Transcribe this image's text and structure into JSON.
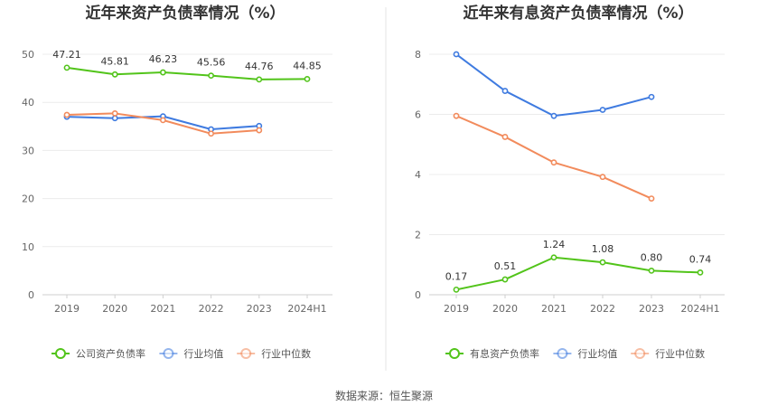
{
  "footer": {
    "source": "数据来源：恒生聚源"
  },
  "chart_data": [
    {
      "type": "line",
      "title": "近年来资产负债率情况（%）",
      "categories": [
        "2019",
        "2020",
        "2021",
        "2022",
        "2023",
        "2024H1"
      ],
      "ylim": [
        0,
        50
      ],
      "yticks": [
        0,
        10,
        20,
        30,
        40,
        50
      ],
      "grid": true,
      "legend_position": "bottom",
      "series": [
        {
          "name": "公司资产负债率",
          "color": "#52c41a",
          "values": [
            47.21,
            45.81,
            46.23,
            45.56,
            44.76,
            44.85
          ],
          "labels": [
            "47.21",
            "45.81",
            "46.23",
            "45.56",
            "44.76",
            "44.85"
          ]
        },
        {
          "name": "行业均值",
          "color": "#3f7be0",
          "values": [
            37.0,
            36.7,
            37.1,
            34.4,
            35.1,
            null
          ]
        },
        {
          "name": "行业中位数",
          "color": "#f28b5c",
          "values": [
            37.4,
            37.7,
            36.3,
            33.5,
            34.2,
            null
          ]
        }
      ]
    },
    {
      "type": "line",
      "title": "近年来有息资产负债率情况（%）",
      "categories": [
        "2019",
        "2020",
        "2021",
        "2022",
        "2023",
        "2024H1"
      ],
      "ylim": [
        0,
        8
      ],
      "yticks": [
        0,
        2,
        4,
        6,
        8
      ],
      "grid": true,
      "legend_position": "bottom",
      "series": [
        {
          "name": "有息资产负债率",
          "color": "#52c41a",
          "values": [
            0.17,
            0.51,
            1.24,
            1.08,
            0.8,
            0.74
          ],
          "labels": [
            "0.17",
            "0.51",
            "1.24",
            "1.08",
            "0.80",
            "0.74"
          ]
        },
        {
          "name": "行业均值",
          "color": "#3f7be0",
          "values": [
            8.0,
            6.78,
            5.95,
            6.15,
            6.58,
            null
          ]
        },
        {
          "name": "行业中位数",
          "color": "#f28b5c",
          "values": [
            5.95,
            5.25,
            4.4,
            3.92,
            3.2,
            null
          ]
        }
      ]
    }
  ]
}
